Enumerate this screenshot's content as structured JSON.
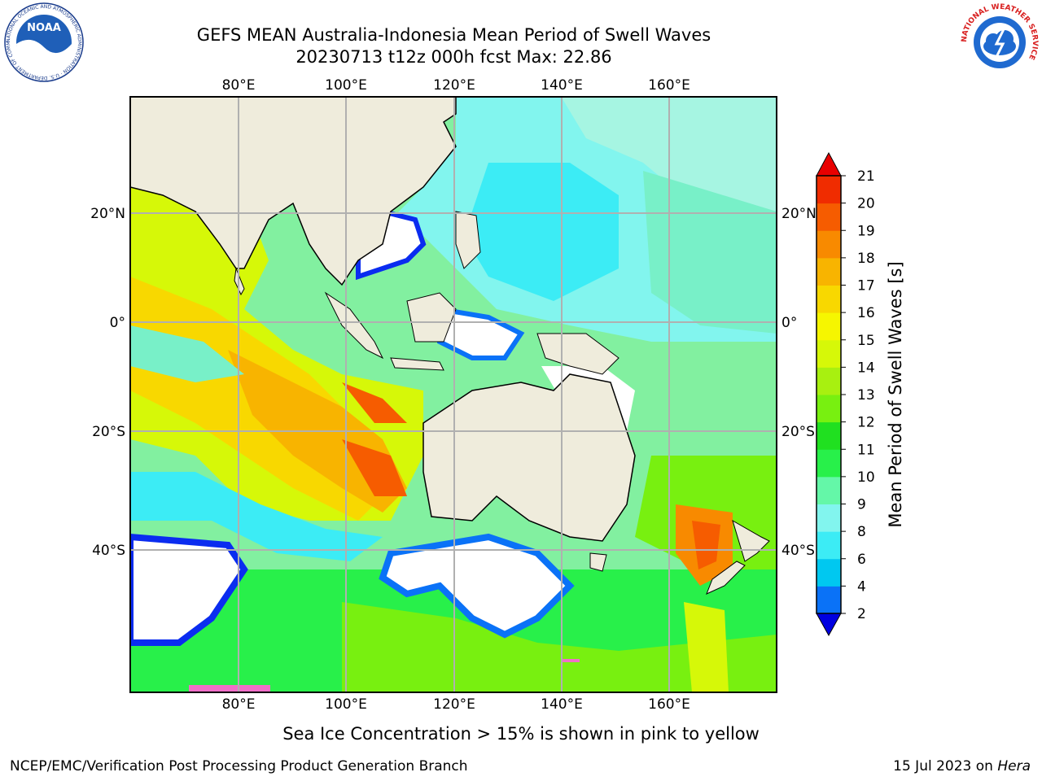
{
  "title": {
    "line1": "GEFS MEAN Australia-Indonesia Mean Period of Swell Waves",
    "line2": "20230713 t12z 000h fcst   Max: 22.86"
  },
  "map": {
    "lon_ticks": [
      "80°E",
      "100°E",
      "120°E",
      "140°E",
      "160°E"
    ],
    "lat_ticks": [
      "20°N",
      "0°",
      "20°S",
      "40°S"
    ],
    "lon_range": [
      60,
      180
    ],
    "lat_range": [
      -58,
      42
    ]
  },
  "colorbar": {
    "label": "Mean Period of Swell Waves [s]",
    "ticks": [
      "2",
      "4",
      "6",
      "8",
      "9",
      "10",
      "11",
      "12",
      "13",
      "14",
      "15",
      "16",
      "17",
      "18",
      "19",
      "20",
      "21"
    ],
    "colors": [
      "#0a2cf0",
      "#0a72f7",
      "#00c8f0",
      "#3cecf5",
      "#82f5ee",
      "#64f7a8",
      "#28f04a",
      "#20e020",
      "#78f010",
      "#a8f010",
      "#d6f808",
      "#f6f600",
      "#f8d800",
      "#f8b400",
      "#f88a00",
      "#f65c00",
      "#f02c00"
    ],
    "under_color": "#0000e0",
    "over_color": "#e80000"
  },
  "footer": {
    "ice_note": "Sea Ice Concentration > 15% is shown in pink to yellow",
    "credit": "NCEP/EMC/Verification Post Processing Product Generation Branch",
    "date": "15 Jul 2023 on",
    "machine": "Hera"
  },
  "logos": {
    "noaa_text": "NOAA",
    "noaa_ring": "NATIONAL OCEANIC AND ATMOSPHERIC ADMINISTRATION · U.S. DEPARTMENT OF COMMERCE",
    "nws_ring": "NATIONAL WEATHER SERVICE"
  }
}
